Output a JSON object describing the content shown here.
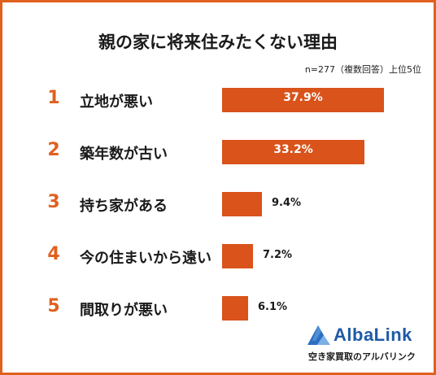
{
  "chart_data": {
    "type": "bar",
    "orientation": "horizontal",
    "title": "親の家に将来住みたくない理由",
    "subtitle": "n=277（複数回答）上位5位",
    "ranks": [
      "1",
      "2",
      "3",
      "4",
      "5"
    ],
    "categories": [
      "立地が悪い",
      "築年数が古い",
      "持ち家がある",
      "今の住まいから遠い",
      "間取りが悪い"
    ],
    "values": [
      37.9,
      33.2,
      9.4,
      7.2,
      6.1
    ],
    "value_labels": [
      "37.9%",
      "33.2%",
      "9.4%",
      "7.2%",
      "6.1%"
    ],
    "unit": "%",
    "grid": false,
    "bar_color": "#d9531b",
    "rank_color": "#e0601e"
  },
  "brand": {
    "name": "AlbaLink",
    "tagline": "空き家買取のアルバリンク",
    "color": "#1f5aa6"
  }
}
